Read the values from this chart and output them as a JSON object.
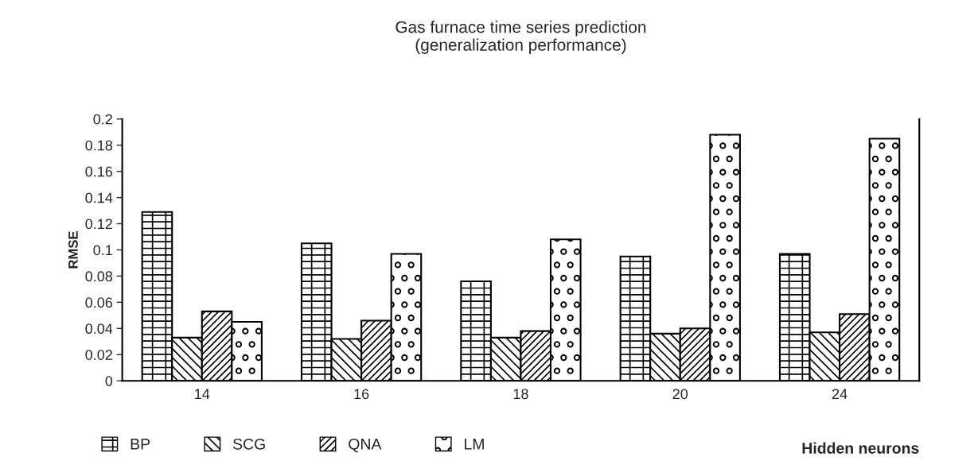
{
  "chart_data": {
    "type": "bar",
    "title": "Gas furnace time series prediction\n(generalization performance)",
    "xlabel": "Hidden neurons",
    "ylabel": "RMSE",
    "categories": [
      "14",
      "16",
      "18",
      "20",
      "24"
    ],
    "series": [
      {
        "name": "BP",
        "color": "#000000",
        "values": [
          0.129,
          0.105,
          0.076,
          0.095,
          0.097
        ]
      },
      {
        "name": "SCG",
        "color": "#000000",
        "values": [
          0.033,
          0.032,
          0.033,
          0.036,
          0.037
        ]
      },
      {
        "name": "QNA",
        "color": "#000000",
        "values": [
          0.053,
          0.046,
          0.038,
          0.04,
          0.051
        ]
      },
      {
        "name": "LM",
        "color": "#000000",
        "values": [
          0.045,
          0.097,
          0.108,
          0.188,
          0.185
        ]
      }
    ],
    "ylim": [
      0,
      0.2
    ],
    "yticks": [
      0,
      0.02,
      0.04,
      0.06,
      0.08,
      0.1,
      0.12,
      0.14,
      0.16,
      0.18,
      0.2
    ],
    "grid": false,
    "legend": "bottom left"
  }
}
